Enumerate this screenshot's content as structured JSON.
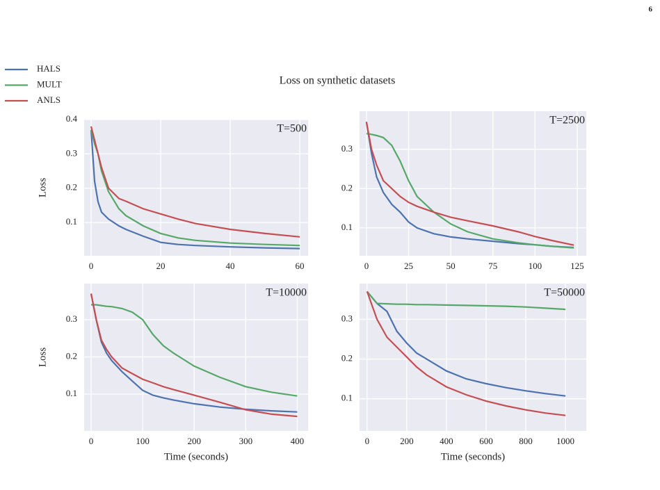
{
  "page_number": "6",
  "title": "Loss on synthetic datasets",
  "chart_data": [
    {
      "type": "line",
      "annotation": "T=500",
      "ylabel": "Loss",
      "x": [
        0,
        1,
        2,
        3,
        5,
        8,
        10,
        15,
        20,
        25,
        30,
        40,
        50,
        60
      ],
      "series": [
        {
          "name": "HALS",
          "color": "#4c72b0",
          "values": [
            0.37,
            0.22,
            0.16,
            0.13,
            0.11,
            0.09,
            0.08,
            0.06,
            0.042,
            0.036,
            0.033,
            0.029,
            0.026,
            0.024
          ]
        },
        {
          "name": "MULT",
          "color": "#55a868",
          "values": [
            0.37,
            0.33,
            0.3,
            0.25,
            0.19,
            0.14,
            0.12,
            0.09,
            0.068,
            0.055,
            0.048,
            0.04,
            0.036,
            0.033
          ]
        },
        {
          "name": "ANLS",
          "color": "#c44e52",
          "values": [
            0.38,
            0.34,
            0.3,
            0.26,
            0.2,
            0.17,
            0.162,
            0.14,
            0.125,
            0.11,
            0.097,
            0.08,
            0.068,
            0.058
          ]
        }
      ],
      "xlim": [
        -2,
        62.4
      ],
      "ylim": [
        0.003,
        0.4
      ],
      "xticks": [
        0,
        20,
        40,
        60
      ],
      "yticks": [
        0.1,
        0.2,
        0.3,
        0.4
      ],
      "grid": true
    },
    {
      "type": "line",
      "annotation": "T=2500",
      "x": [
        0,
        3,
        6,
        10,
        15,
        20,
        25,
        30,
        40,
        50,
        60,
        75,
        90,
        100,
        110,
        123
      ],
      "series": [
        {
          "color": "#4c72b0",
          "values": [
            0.37,
            0.29,
            0.23,
            0.19,
            0.16,
            0.14,
            0.115,
            0.1,
            0.085,
            0.077,
            0.072,
            0.066,
            0.06,
            0.057,
            0.053,
            0.05
          ]
        },
        {
          "color": "#55a868",
          "values": [
            0.34,
            0.338,
            0.335,
            0.33,
            0.31,
            0.27,
            0.22,
            0.18,
            0.14,
            0.11,
            0.09,
            0.072,
            0.062,
            0.057,
            0.053,
            0.049
          ]
        },
        {
          "color": "#c44e52",
          "values": [
            0.37,
            0.3,
            0.26,
            0.22,
            0.2,
            0.18,
            0.165,
            0.155,
            0.14,
            0.127,
            0.118,
            0.105,
            0.09,
            0.078,
            0.068,
            0.056
          ]
        }
      ],
      "xlim": [
        -4.1,
        130.4
      ],
      "ylim": [
        0.029,
        0.397
      ],
      "xticks": [
        0,
        25,
        50,
        75,
        100,
        125
      ],
      "yticks": [
        0.1,
        0.2,
        0.3
      ],
      "grid": true
    },
    {
      "type": "line",
      "annotation": "T=10000",
      "ylabel": "Loss",
      "xlabel": "Time (seconds)",
      "x": [
        0,
        10,
        20,
        30,
        40,
        60,
        80,
        100,
        120,
        140,
        160,
        200,
        250,
        300,
        350,
        400
      ],
      "series": [
        {
          "color": "#4c72b0",
          "values": [
            0.37,
            0.3,
            0.24,
            0.21,
            0.19,
            0.16,
            0.135,
            0.11,
            0.097,
            0.09,
            0.084,
            0.074,
            0.065,
            0.059,
            0.055,
            0.052
          ]
        },
        {
          "color": "#55a868",
          "values": [
            0.34,
            0.34,
            0.338,
            0.336,
            0.335,
            0.33,
            0.32,
            0.3,
            0.26,
            0.23,
            0.21,
            0.175,
            0.145,
            0.12,
            0.105,
            0.095
          ]
        },
        {
          "color": "#c44e52",
          "values": [
            0.37,
            0.3,
            0.245,
            0.22,
            0.2,
            0.17,
            0.155,
            0.14,
            0.13,
            0.12,
            0.112,
            0.097,
            0.078,
            0.058,
            0.046,
            0.04
          ]
        }
      ],
      "xlim": [
        -13.5,
        421
      ],
      "ylim": [
        0.001,
        0.397
      ],
      "xticks": [
        0,
        100,
        200,
        300,
        400
      ],
      "yticks": [
        0.1,
        0.2,
        0.3
      ],
      "grid": true
    },
    {
      "type": "line",
      "annotation": "T=50000",
      "xlabel": "Time (seconds)",
      "x": [
        0,
        50,
        100,
        150,
        200,
        250,
        300,
        400,
        500,
        600,
        700,
        800,
        900,
        1000
      ],
      "series": [
        {
          "color": "#4c72b0",
          "values": [
            0.37,
            0.34,
            0.32,
            0.27,
            0.24,
            0.215,
            0.2,
            0.17,
            0.15,
            0.138,
            0.128,
            0.12,
            0.113,
            0.107
          ]
        },
        {
          "color": "#55a868",
          "values": [
            0.37,
            0.34,
            0.339,
            0.338,
            0.338,
            0.337,
            0.337,
            0.336,
            0.335,
            0.334,
            0.333,
            0.331,
            0.328,
            0.325
          ]
        },
        {
          "color": "#c44e52",
          "values": [
            0.37,
            0.3,
            0.255,
            0.23,
            0.205,
            0.18,
            0.16,
            0.13,
            0.11,
            0.094,
            0.082,
            0.072,
            0.064,
            0.058
          ]
        }
      ],
      "xlim": [
        -38,
        1105
      ],
      "ylim": [
        0.019,
        0.39
      ],
      "xticks": [
        0,
        200,
        400,
        600,
        800,
        1000
      ],
      "yticks": [
        0.1,
        0.2,
        0.3
      ],
      "grid": true
    }
  ]
}
